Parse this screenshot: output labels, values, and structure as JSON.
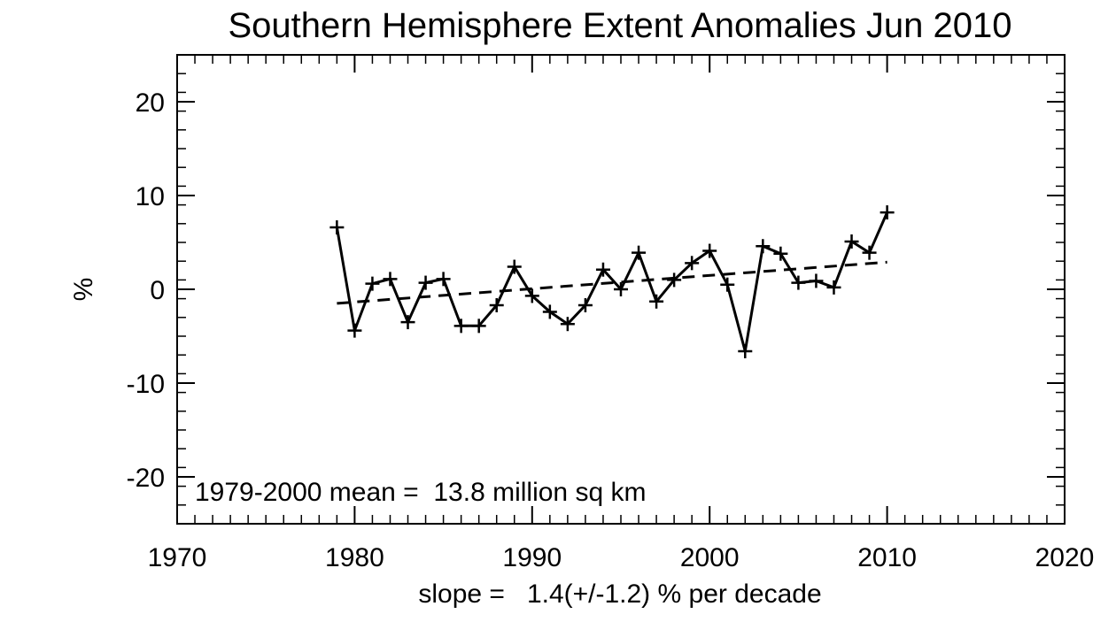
{
  "chart_data": {
    "type": "line",
    "title": "Southern Hemisphere Extent Anomalies Jun 2010",
    "xlabel": "slope =   1.4(+/-1.2) % per decade",
    "ylabel": "%",
    "xlim": [
      1970,
      2020
    ],
    "ylim": [
      -25,
      25
    ],
    "x_ticks": [
      1970,
      1980,
      1990,
      2000,
      2010,
      2020
    ],
    "x_tick_labels": [
      "1970",
      "1980",
      "1990",
      "2000",
      "2010",
      "2020"
    ],
    "y_ticks": [
      -20,
      -10,
      0,
      10,
      20
    ],
    "y_tick_labels": [
      "-20",
      "-10",
      "0",
      "10",
      "20"
    ],
    "grid": false,
    "annotation": "1979-2000 mean =  13.8 million sq km",
    "series": [
      {
        "style": "solid-with-plus-markers",
        "x": [
          1979,
          1980,
          1981,
          1982,
          1983,
          1984,
          1985,
          1986,
          1987,
          1988,
          1989,
          1990,
          1991,
          1992,
          1993,
          1994,
          1995,
          1996,
          1997,
          1998,
          1999,
          2000,
          2001,
          2002,
          2003,
          2004,
          2005,
          2006,
          2007,
          2008,
          2009,
          2010
        ],
        "values": [
          6.6,
          -4.4,
          0.6,
          1.1,
          -3.5,
          0.7,
          1.1,
          -3.9,
          -3.9,
          -1.7,
          2.4,
          -0.7,
          -2.4,
          -3.7,
          -1.7,
          2.1,
          0.0,
          3.9,
          -1.3,
          1.0,
          2.8,
          4.1,
          0.5,
          -6.6,
          4.6,
          3.8,
          0.7,
          0.9,
          0.2,
          5.1,
          3.9,
          8.2
        ]
      },
      {
        "style": "dashed-trend",
        "x": [
          1979,
          2010
        ],
        "values": [
          -1.5,
          2.9
        ]
      }
    ]
  }
}
